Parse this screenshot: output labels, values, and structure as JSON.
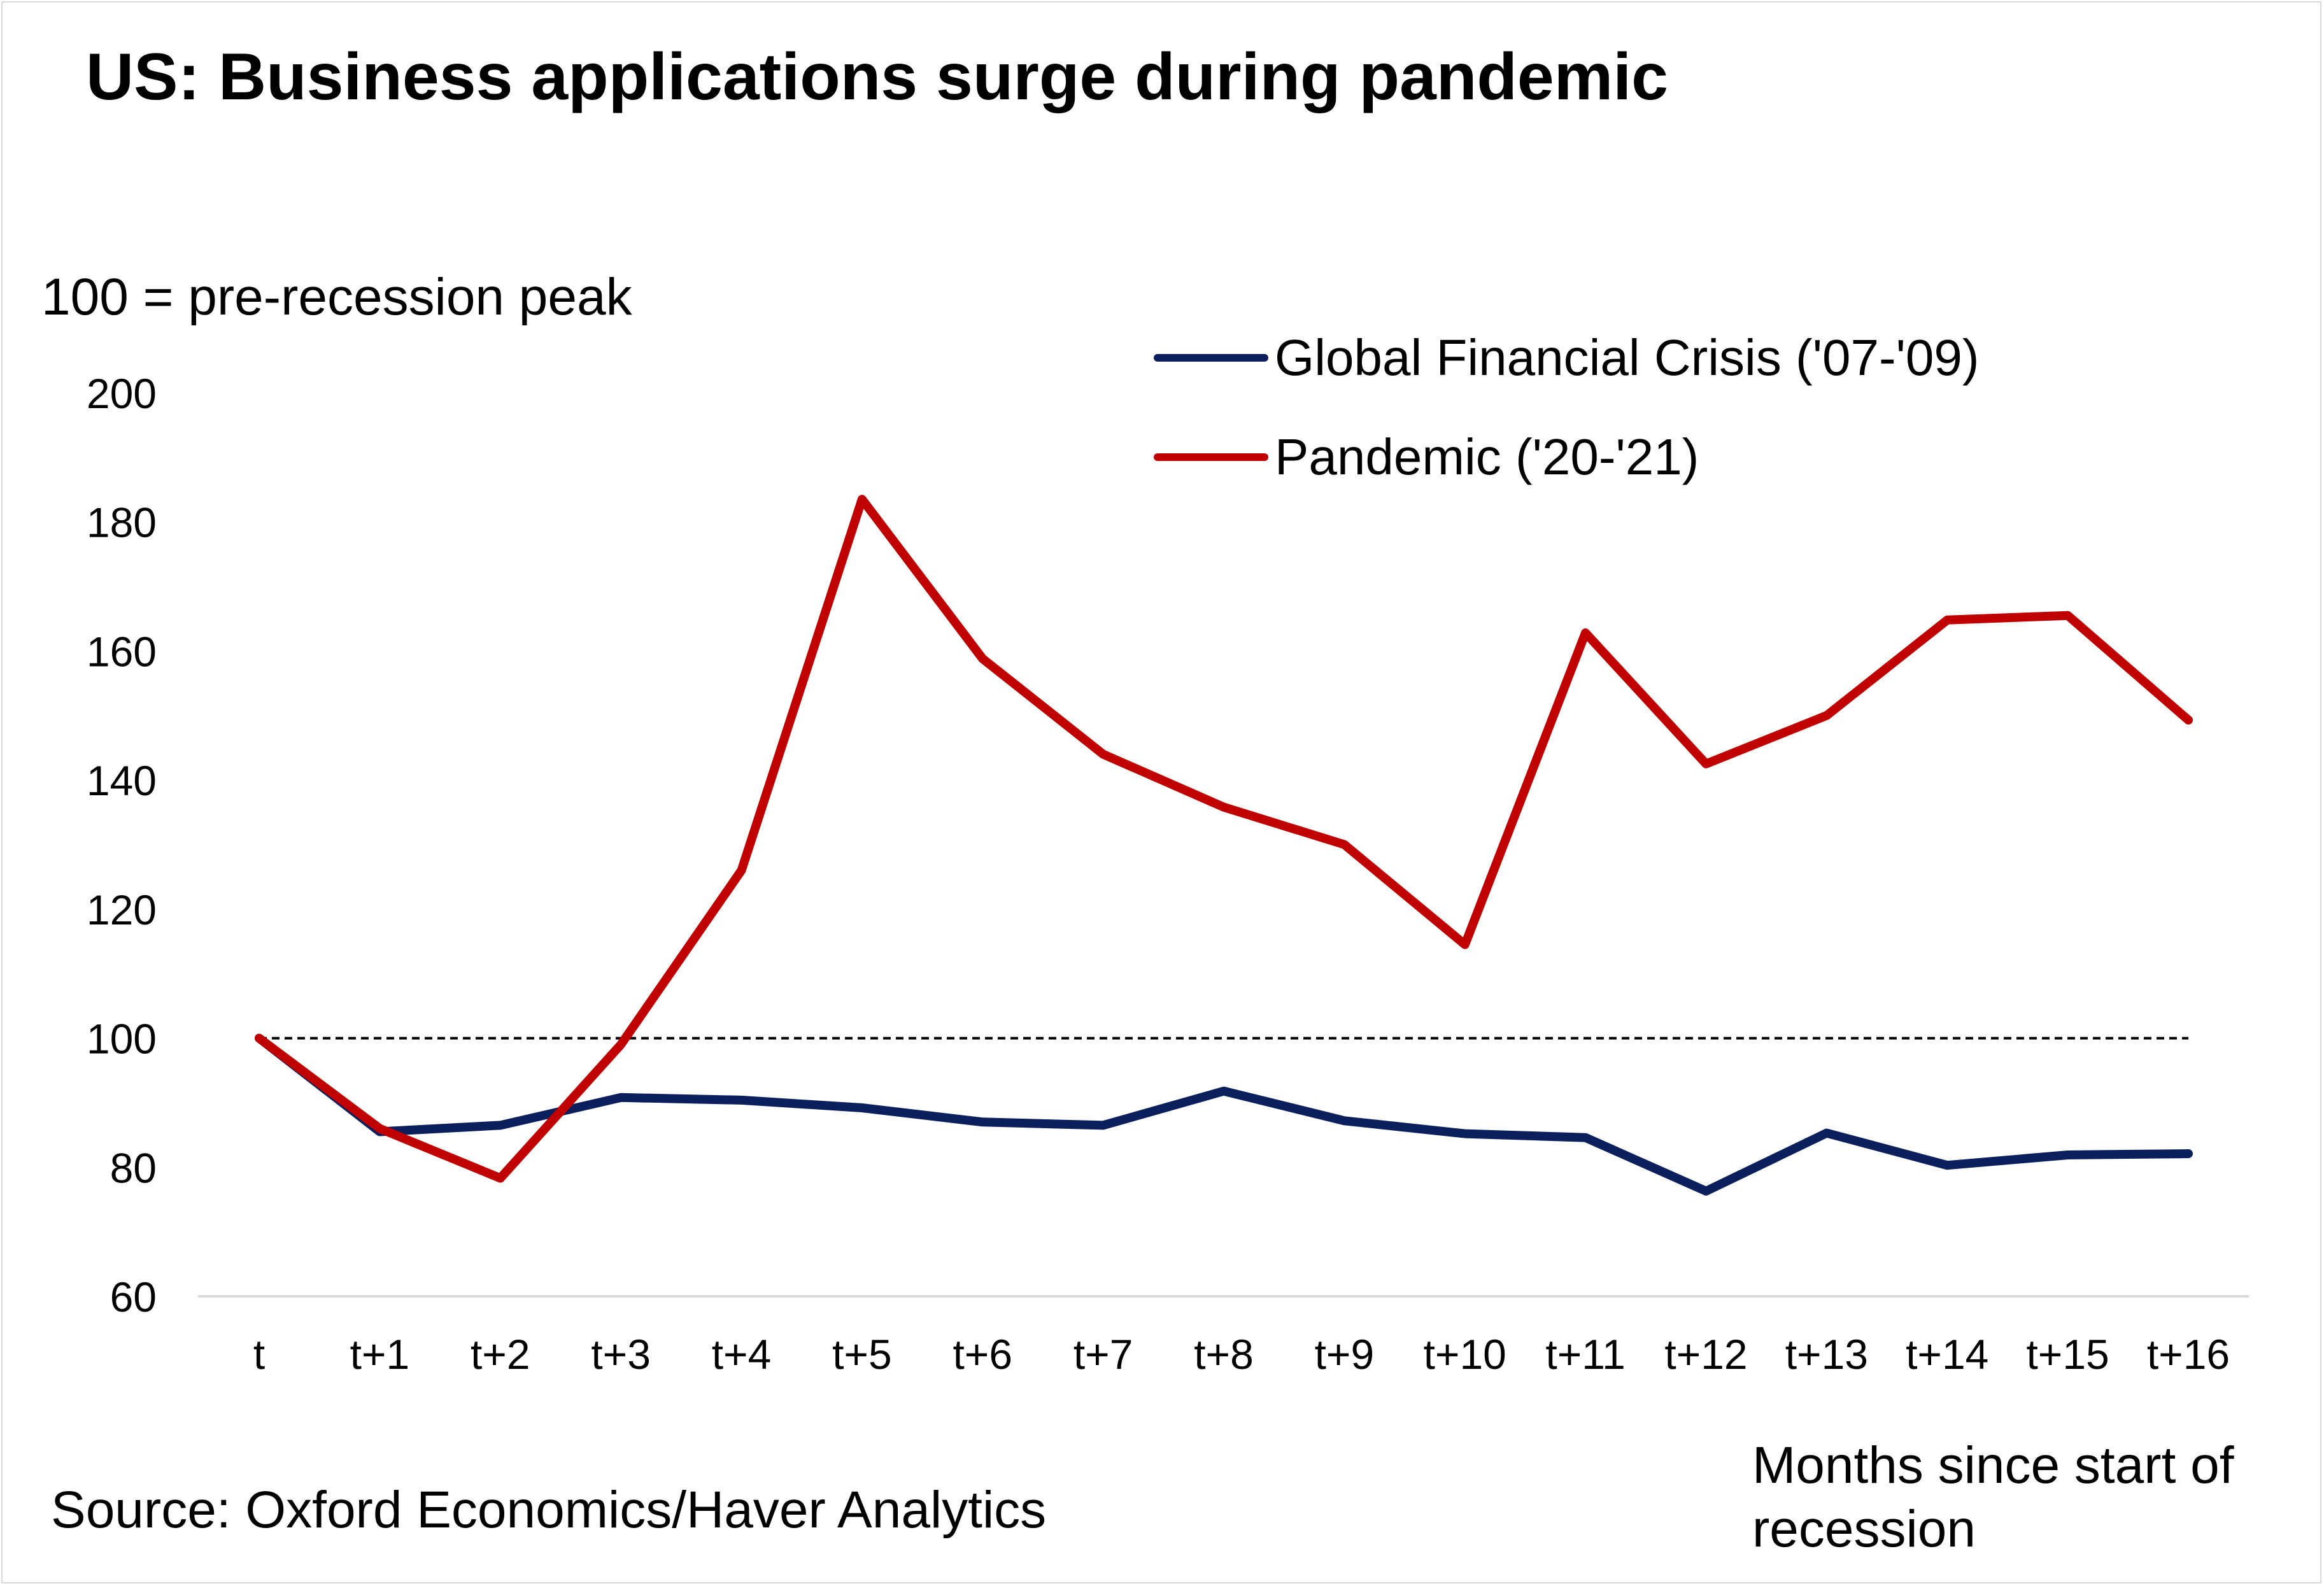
{
  "chart_data": {
    "type": "line",
    "title": "US: Business applications surge during pandemic",
    "ylabel": "100 = pre-recession peak",
    "xlabel": "Months since start of recession",
    "source": "Source: Oxford Economics/Haver Analytics",
    "categories": [
      "t",
      "t+1",
      "t+2",
      "t+3",
      "t+4",
      "t+5",
      "t+6",
      "t+7",
      "t+8",
      "t+9",
      "t+10",
      "t+11",
      "t+12",
      "t+13",
      "t+14",
      "t+15",
      "t+16"
    ],
    "yticks": [
      "60",
      "80",
      "100",
      "120",
      "140",
      "160",
      "180",
      "200"
    ],
    "ylim": [
      60,
      200
    ],
    "reference_line": 100,
    "series": [
      {
        "name": "Global Financial Crisis ('07-'09)",
        "color": "#0b1f5c",
        "values": [
          100,
          85.5,
          86.5,
          90.8,
          90.4,
          89.2,
          87.0,
          86.5,
          91.8,
          87.2,
          85.2,
          84.6,
          76.3,
          85.3,
          80.3,
          81.9,
          82.1
        ]
      },
      {
        "name": "Pandemic ('20-'21)",
        "color": "#c00000",
        "values": [
          100,
          86.0,
          78.3,
          99.0,
          126.0,
          183.5,
          158.8,
          144.0,
          135.8,
          130.0,
          114.5,
          162.8,
          142.5,
          150.0,
          164.8,
          165.5,
          149.3
        ]
      }
    ]
  }
}
